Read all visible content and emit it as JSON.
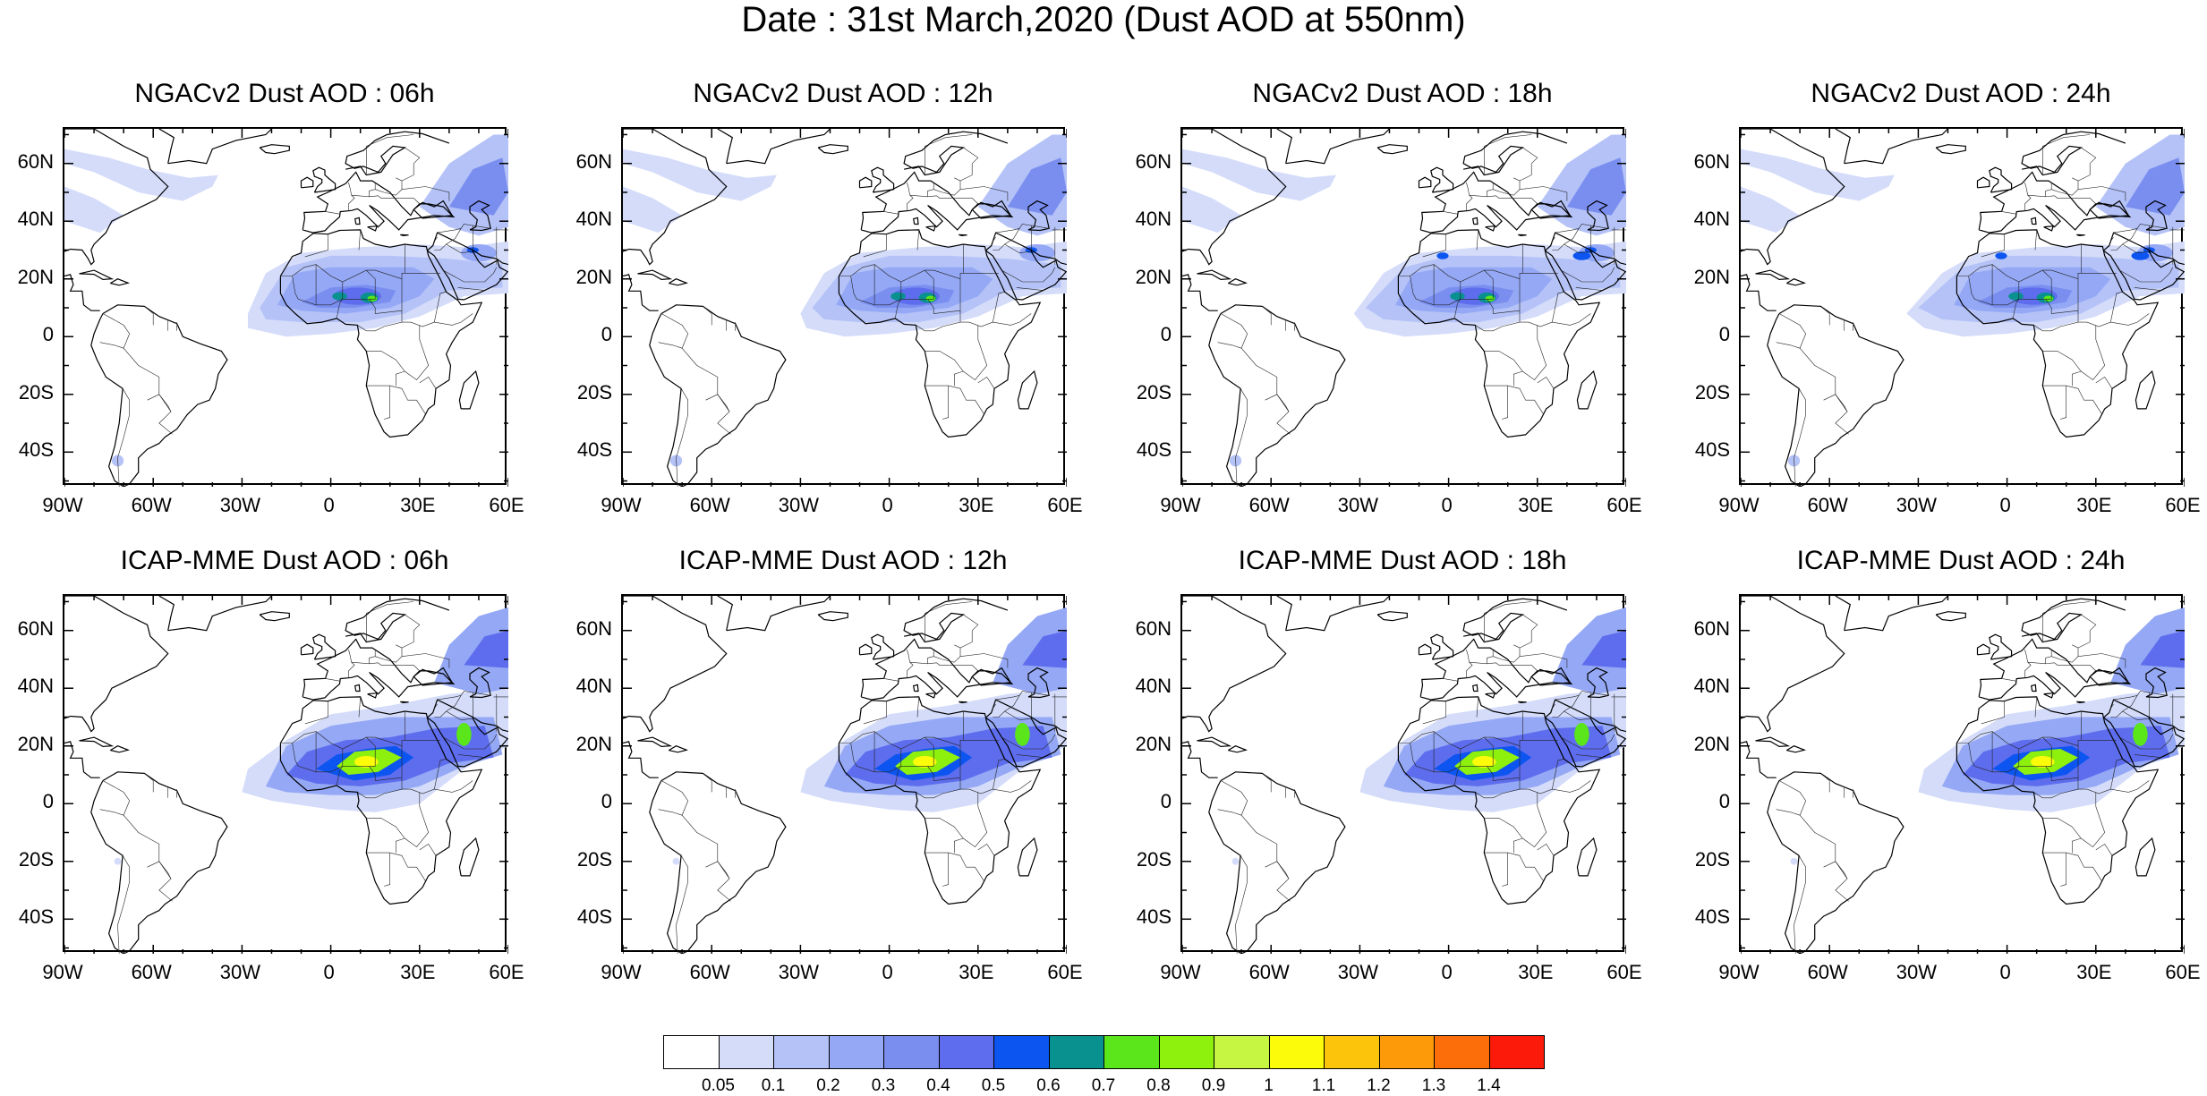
{
  "title": "Date : 31st March,2020 (Dust AOD at 550nm)",
  "panels": [
    {
      "title": "NGACv2 Dust AOD : 06h",
      "model": "ngac"
    },
    {
      "title": "NGACv2 Dust AOD : 12h",
      "model": "ngac"
    },
    {
      "title": "NGACv2 Dust AOD : 18h",
      "model": "ngac"
    },
    {
      "title": "NGACv2 Dust AOD : 24h",
      "model": "ngac"
    },
    {
      "title": "ICAP-MME Dust AOD : 06h",
      "model": "icap"
    },
    {
      "title": "ICAP-MME Dust AOD : 12h",
      "model": "icap"
    },
    {
      "title": "ICAP-MME Dust AOD : 18h",
      "model": "icap"
    },
    {
      "title": "ICAP-MME Dust AOD : 24h",
      "model": "icap"
    }
  ],
  "lat_labels": [
    "60N",
    "40N",
    "20N",
    "0",
    "20S",
    "40S"
  ],
  "lon_labels": [
    "90W",
    "60W",
    "30W",
    "0",
    "30E",
    "60E"
  ],
  "colorbar": {
    "colors": [
      "#ffffff",
      "#d4dcfa",
      "#b4c2f7",
      "#94a8f5",
      "#7a8ef0",
      "#5e6ded",
      "#0d55f0",
      "#08918f",
      "#5ae61a",
      "#8ef00d",
      "#c6f542",
      "#fcfc0a",
      "#fcc40a",
      "#fc9a0a",
      "#fc6e0a",
      "#fc1a0a"
    ],
    "labels": [
      "0.05",
      "0.1",
      "0.2",
      "0.3",
      "0.4",
      "0.5",
      "0.6",
      "0.7",
      "0.8",
      "0.9",
      "1",
      "1.1",
      "1.2",
      "1.3",
      "1.4"
    ]
  }
}
